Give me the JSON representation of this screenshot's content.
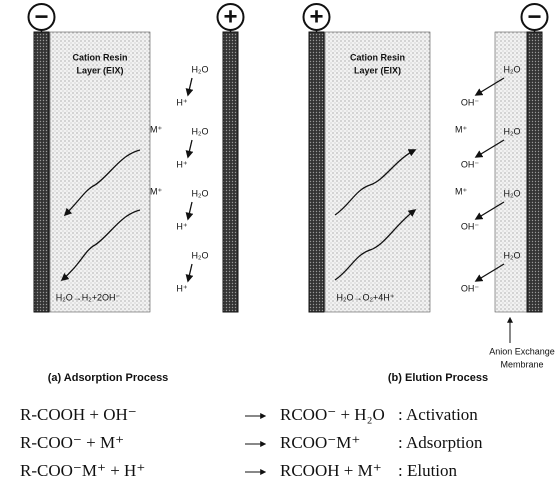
{
  "panels": [
    {
      "electrode_left": "−",
      "electrode_right": "+",
      "layer_label": [
        "Cation Resin",
        "Layer (EIX)"
      ],
      "ion_labels": [
        "M⁺",
        "M⁺"
      ],
      "water_labels": [
        "H₂O",
        "H₂O",
        "H₂O",
        "H₂O"
      ],
      "product_labels": [
        "H⁺",
        "H⁺",
        "H⁺",
        "H⁺"
      ],
      "reaction": "H₂O→H₂+2OH⁻",
      "caption": "(a) Adsorption Process"
    },
    {
      "electrode_left": "+",
      "electrode_right": "−",
      "layer_label": [
        "Cation Resin",
        "Layer (EIX)"
      ],
      "ion_labels": [
        "M⁺",
        "M⁺"
      ],
      "water_labels": [
        "H₂O",
        "H₂O",
        "H₂O",
        "H₂O"
      ],
      "product_labels": [
        "OH⁻",
        "OH⁻",
        "OH⁻",
        "OH⁻"
      ],
      "reaction": "H₂O→O₂+4H⁺",
      "membrane_label": [
        "Anion Exchange",
        "Membrane"
      ],
      "caption": "(b) Elution Process"
    }
  ],
  "equations": [
    {
      "left": "R-COOH + OH⁻",
      "right": "RCOO⁻ + H₂O",
      "label": ": Activation"
    },
    {
      "left": "R-COO⁻ + M⁺",
      "right": "RCOO⁻M⁺",
      "label": ": Adsorption"
    },
    {
      "left": "R-COO⁻M⁺ + H⁺",
      "right": "RCOOH + M⁺",
      "label": ": Elution"
    }
  ]
}
